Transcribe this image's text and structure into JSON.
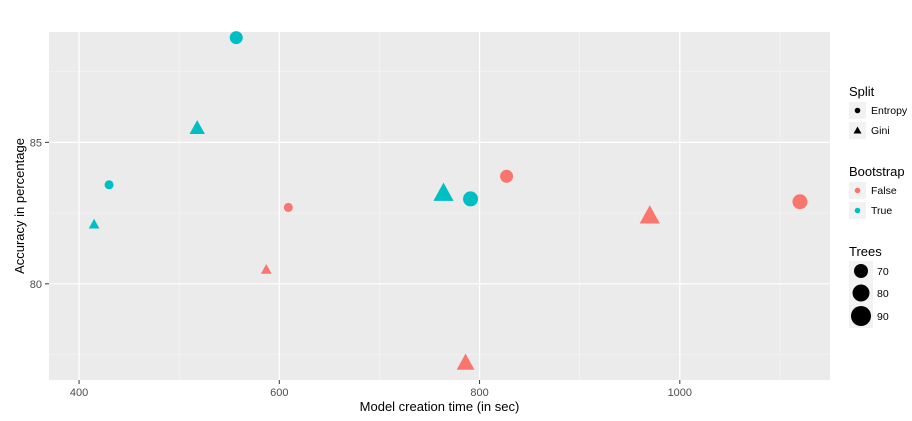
{
  "chart_data": {
    "type": "scatter",
    "xlabel": "Model creation time (in sec)",
    "ylabel": "Accuracy in percentage",
    "xlim": [
      370,
      1150
    ],
    "ylim": [
      76.6,
      88.9
    ],
    "x_ticks": [
      400,
      600,
      800,
      1000
    ],
    "y_ticks": [
      80,
      85
    ],
    "grid": true,
    "colors": {
      "False": "#F8766D",
      "True": "#00BFC4"
    },
    "points": [
      {
        "x": 557,
        "y": 88.7,
        "split": "Entropy",
        "bootstrap": "True",
        "trees": 80
      },
      {
        "x": 518,
        "y": 85.5,
        "split": "Gini",
        "bootstrap": "True",
        "trees": 80
      },
      {
        "x": 430,
        "y": 83.5,
        "split": "Entropy",
        "bootstrap": "True",
        "trees": 70
      },
      {
        "x": 415,
        "y": 82.1,
        "split": "Gini",
        "bootstrap": "True",
        "trees": 70
      },
      {
        "x": 764,
        "y": 83.2,
        "split": "Gini",
        "bootstrap": "True",
        "trees": 90
      },
      {
        "x": 791,
        "y": 83.0,
        "split": "Entropy",
        "bootstrap": "True",
        "trees": 85
      },
      {
        "x": 827,
        "y": 83.8,
        "split": "Entropy",
        "bootstrap": "False",
        "trees": 80
      },
      {
        "x": 970,
        "y": 82.4,
        "split": "Gini",
        "bootstrap": "False",
        "trees": 90
      },
      {
        "x": 1120,
        "y": 82.9,
        "split": "Entropy",
        "bootstrap": "False",
        "trees": 85
      },
      {
        "x": 609,
        "y": 82.7,
        "split": "Entropy",
        "bootstrap": "False",
        "trees": 70
      },
      {
        "x": 587,
        "y": 80.5,
        "split": "Gini",
        "bootstrap": "False",
        "trees": 70
      },
      {
        "x": 786,
        "y": 77.2,
        "split": "Gini",
        "bootstrap": "False",
        "trees": 85
      }
    ],
    "legend": {
      "placement": "right",
      "split": {
        "title": "Split",
        "items": [
          "Entropy",
          "Gini"
        ]
      },
      "bootstrap": {
        "title": "Bootstrap",
        "items": [
          "False",
          "True"
        ]
      },
      "trees": {
        "title": "Trees",
        "items": [
          "70",
          "80",
          "90"
        ]
      }
    }
  }
}
